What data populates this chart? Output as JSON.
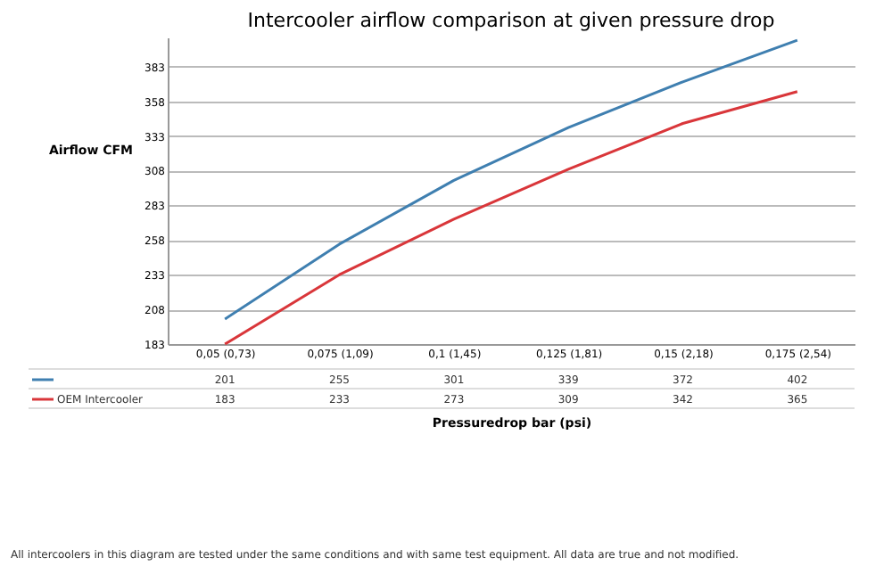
{
  "chart_data": {
    "type": "line",
    "title": "Intercooler airflow comparison at given pressure drop",
    "xlabel": "Pressuredrop bar (psi)",
    "ylabel": "Airflow CFM",
    "categories": [
      "0,05 (0,73)",
      "0,075 (1,09)",
      "0,1 (1,45)",
      "0,125 (1,81)",
      "0,15 (2,18)",
      "0,175 (2,54)"
    ],
    "series": [
      {
        "color": "#3f7fb0",
        "values": [
          201,
          255,
          301,
          339,
          372,
          402
        ]
      },
      {
        "name": "OEM Intercooler",
        "color": "#d9363a",
        "values": [
          183,
          233,
          273,
          309,
          342,
          365
        ]
      }
    ],
    "ylim": [
      183,
      404
    ],
    "yticks": [
      183,
      208,
      233,
      258,
      283,
      308,
      333,
      358,
      383
    ],
    "grid": "y",
    "legend": "bottom",
    "data_labels": true,
    "marker": "none",
    "line_style": "solid",
    "annotations": [
      "All intercoolers in this diagram are tested under the same conditions and with same test equipment. All data are true and not modified."
    ]
  }
}
